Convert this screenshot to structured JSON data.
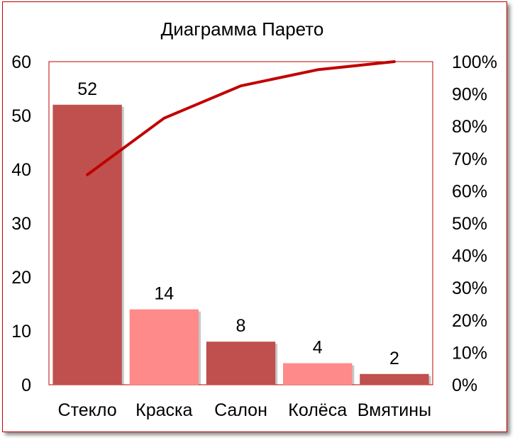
{
  "chart_data": {
    "type": "bar",
    "title": "Диаграмма Парето",
    "categories": [
      "Стекло",
      "Краска",
      "Салон",
      "Колёса",
      "Вмятины"
    ],
    "series": [
      {
        "type": "bar",
        "values": [
          52,
          14,
          8,
          4,
          2
        ],
        "colors": [
          "#c0504d",
          "#ff8a8a",
          "#c0504d",
          "#ff8a8a",
          "#c0504d"
        ]
      },
      {
        "type": "line",
        "axis": "right",
        "values": [
          65,
          82.5,
          92.5,
          97.5,
          100
        ],
        "color": "#c00000"
      }
    ],
    "data_labels": [
      "52",
      "14",
      "8",
      "4",
      "2"
    ],
    "y_left": {
      "min": 0,
      "max": 60,
      "ticks": [
        "0",
        "10",
        "20",
        "30",
        "40",
        "50",
        "60"
      ]
    },
    "y_right": {
      "min": 0,
      "max": 100,
      "ticks": [
        "0%",
        "10%",
        "20%",
        "30%",
        "40%",
        "50%",
        "60%",
        "70%",
        "80%",
        "90%",
        "100%"
      ]
    },
    "grid": false,
    "legend": "none",
    "plot_border_color": "#c00000"
  }
}
